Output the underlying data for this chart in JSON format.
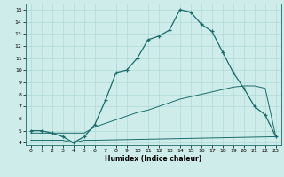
{
  "xlabel": "Humidex (Indice chaleur)",
  "xlim": [
    -0.5,
    23.5
  ],
  "ylim": [
    3.8,
    15.5
  ],
  "xticks": [
    0,
    1,
    2,
    3,
    4,
    5,
    6,
    7,
    8,
    9,
    10,
    11,
    12,
    13,
    14,
    15,
    16,
    17,
    18,
    19,
    20,
    21,
    22,
    23
  ],
  "yticks": [
    4,
    5,
    6,
    7,
    8,
    9,
    10,
    11,
    12,
    13,
    14,
    15
  ],
  "background_color": "#ceecea",
  "line_color": "#1a6b6b",
  "grid_color": "#a8d5d2",
  "line1_x": [
    0,
    1,
    2,
    3,
    4,
    5,
    6,
    7,
    8,
    9,
    10,
    11,
    12,
    13,
    14,
    15,
    16,
    17,
    18,
    19,
    20,
    21,
    22,
    23
  ],
  "line1_y": [
    5.0,
    5.0,
    4.8,
    4.5,
    4.0,
    4.5,
    5.5,
    7.5,
    9.8,
    10.0,
    11.0,
    12.5,
    12.8,
    13.3,
    15.0,
    14.8,
    13.8,
    13.2,
    11.5,
    9.8,
    8.5,
    7.0,
    6.3,
    4.5
  ],
  "line2_x": [
    0,
    3,
    4,
    5,
    6,
    23
  ],
  "line2_y": [
    4.2,
    4.2,
    4.0,
    4.2,
    4.2,
    4.5
  ],
  "line3_x": [
    0,
    1,
    2,
    3,
    4,
    5,
    6,
    7,
    8,
    9,
    10,
    11,
    12,
    13,
    14,
    15,
    16,
    17,
    18,
    19,
    20,
    21,
    22,
    23
  ],
  "line3_y": [
    4.8,
    4.8,
    4.8,
    4.8,
    4.8,
    4.8,
    5.3,
    5.6,
    5.9,
    6.2,
    6.5,
    6.7,
    7.0,
    7.3,
    7.6,
    7.8,
    8.0,
    8.2,
    8.4,
    8.6,
    8.7,
    8.7,
    8.5,
    4.5
  ]
}
